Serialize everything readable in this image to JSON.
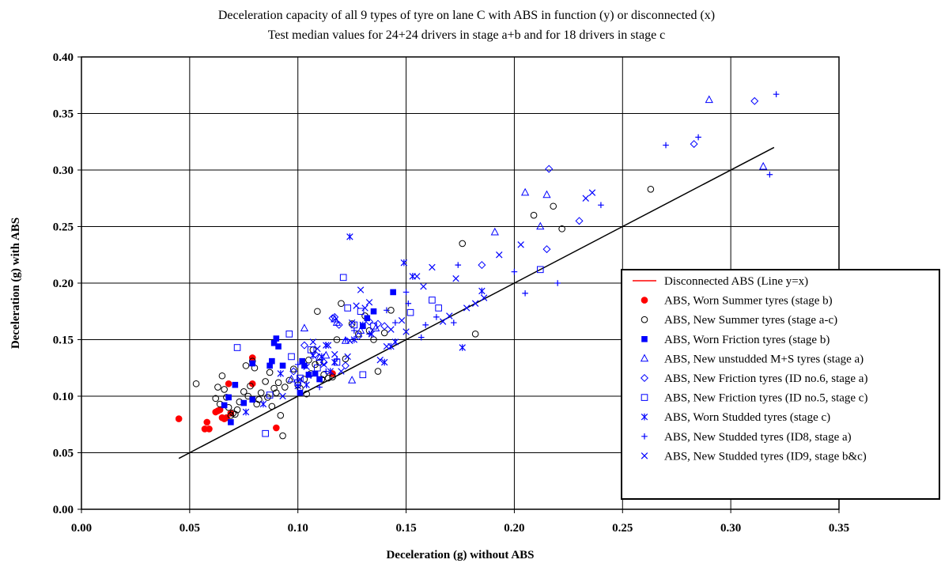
{
  "chart_data": {
    "type": "scatter",
    "title": "Deceleration capacity of all 9 types of tyre on lane C with ABS in function (y) or disconnected (x)",
    "subtitle": "Test median values for 24+24 drivers in stage a+b and for 18 drivers in stage c",
    "xlabel": "Deceleration (g) without ABS",
    "ylabel": "Deceleration (g) with ABS",
    "xlim": [
      0.0,
      0.35
    ],
    "ylim": [
      0.0,
      0.4
    ],
    "x_ticks": [
      "0.00",
      "0.05",
      "0.10",
      "0.15",
      "0.20",
      "0.25",
      "0.30",
      "0.35"
    ],
    "y_ticks": [
      "0.00",
      "0.05",
      "0.10",
      "0.15",
      "0.20",
      "0.25",
      "0.30",
      "0.35",
      "0.40"
    ],
    "grid": true,
    "legend_position": "right",
    "reference_line": {
      "name": "Disconnected ABS (Line y=x)",
      "x": [
        0.045,
        0.32
      ],
      "y": [
        0.045,
        0.32
      ],
      "color": "#000000",
      "legend_color": "#ff0000"
    },
    "series": [
      {
        "name": "ABS, Worn Summer tyres (stage b)",
        "marker": "circle-filled",
        "color": "#ff0000",
        "points": [
          [
            0.045,
            0.08
          ],
          [
            0.057,
            0.071
          ],
          [
            0.058,
            0.077
          ],
          [
            0.059,
            0.071
          ],
          [
            0.062,
            0.086
          ],
          [
            0.063,
            0.087
          ],
          [
            0.064,
            0.088
          ],
          [
            0.065,
            0.081
          ],
          [
            0.066,
            0.08
          ],
          [
            0.067,
            0.081
          ],
          [
            0.068,
            0.111
          ],
          [
            0.069,
            0.085
          ],
          [
            0.079,
            0.134
          ],
          [
            0.079,
            0.111
          ],
          [
            0.09,
            0.072
          ],
          [
            0.116,
            0.12
          ]
        ]
      },
      {
        "name": "ABS, New Summer tyres (stage a-c)",
        "marker": "circle-open",
        "color": "#000000",
        "points": [
          [
            0.053,
            0.111
          ],
          [
            0.062,
            0.098
          ],
          [
            0.063,
            0.108
          ],
          [
            0.064,
            0.093
          ],
          [
            0.065,
            0.118
          ],
          [
            0.066,
            0.106
          ],
          [
            0.067,
            0.099
          ],
          [
            0.068,
            0.09
          ],
          [
            0.069,
            0.083
          ],
          [
            0.07,
            0.085
          ],
          [
            0.071,
            0.084
          ],
          [
            0.072,
            0.088
          ],
          [
            0.073,
            0.095
          ],
          [
            0.075,
            0.104
          ],
          [
            0.076,
            0.127
          ],
          [
            0.077,
            0.1
          ],
          [
            0.078,
            0.109
          ],
          [
            0.079,
            0.131
          ],
          [
            0.08,
            0.125
          ],
          [
            0.081,
            0.093
          ],
          [
            0.082,
            0.097
          ],
          [
            0.083,
            0.103
          ],
          [
            0.085,
            0.113
          ],
          [
            0.086,
            0.099
          ],
          [
            0.087,
            0.121
          ],
          [
            0.088,
            0.091
          ],
          [
            0.089,
            0.107
          ],
          [
            0.09,
            0.103
          ],
          [
            0.091,
            0.112
          ],
          [
            0.092,
            0.083
          ],
          [
            0.093,
            0.065
          ],
          [
            0.094,
            0.108
          ],
          [
            0.096,
            0.114
          ],
          [
            0.098,
            0.124
          ],
          [
            0.1,
            0.11
          ],
          [
            0.101,
            0.107
          ],
          [
            0.103,
            0.115
          ],
          [
            0.104,
            0.102
          ],
          [
            0.105,
            0.132
          ],
          [
            0.106,
            0.12
          ],
          [
            0.107,
            0.141
          ],
          [
            0.108,
            0.128
          ],
          [
            0.109,
            0.175
          ],
          [
            0.11,
            0.13
          ],
          [
            0.111,
            0.115
          ],
          [
            0.112,
            0.119
          ],
          [
            0.114,
            0.116
          ],
          [
            0.116,
            0.117
          ],
          [
            0.118,
            0.15
          ],
          [
            0.12,
            0.182
          ],
          [
            0.122,
            0.133
          ],
          [
            0.125,
            0.164
          ],
          [
            0.128,
            0.155
          ],
          [
            0.131,
            0.171
          ],
          [
            0.133,
            0.158
          ],
          [
            0.135,
            0.15
          ],
          [
            0.137,
            0.122
          ],
          [
            0.14,
            0.156
          ],
          [
            0.143,
            0.176
          ],
          [
            0.176,
            0.235
          ],
          [
            0.182,
            0.155
          ],
          [
            0.209,
            0.26
          ],
          [
            0.218,
            0.268
          ],
          [
            0.222,
            0.248
          ],
          [
            0.263,
            0.283
          ]
        ]
      },
      {
        "name": "ABS, Worn Friction tyres (stage b)",
        "marker": "square-filled",
        "color": "#0000ff",
        "points": [
          [
            0.066,
            0.092
          ],
          [
            0.068,
            0.099
          ],
          [
            0.069,
            0.077
          ],
          [
            0.071,
            0.11
          ],
          [
            0.075,
            0.094
          ],
          [
            0.079,
            0.129
          ],
          [
            0.079,
            0.097
          ],
          [
            0.087,
            0.127
          ],
          [
            0.088,
            0.131
          ],
          [
            0.089,
            0.147
          ],
          [
            0.09,
            0.151
          ],
          [
            0.091,
            0.144
          ],
          [
            0.093,
            0.127
          ],
          [
            0.101,
            0.103
          ],
          [
            0.102,
            0.131
          ],
          [
            0.103,
            0.127
          ],
          [
            0.105,
            0.119
          ],
          [
            0.108,
            0.12
          ],
          [
            0.11,
            0.115
          ],
          [
            0.13,
            0.162
          ],
          [
            0.132,
            0.169
          ],
          [
            0.135,
            0.175
          ],
          [
            0.144,
            0.192
          ]
        ]
      },
      {
        "name": "ABS, New unstudded M+S tyres (stage a)",
        "marker": "triangle-open",
        "color": "#0000ff",
        "points": [
          [
            0.097,
            0.115
          ],
          [
            0.103,
            0.16
          ],
          [
            0.11,
            0.134
          ],
          [
            0.113,
            0.136
          ],
          [
            0.117,
            0.168
          ],
          [
            0.118,
            0.165
          ],
          [
            0.122,
            0.149
          ],
          [
            0.125,
            0.114
          ],
          [
            0.129,
            0.158
          ],
          [
            0.136,
            0.16
          ],
          [
            0.191,
            0.245
          ],
          [
            0.205,
            0.28
          ],
          [
            0.212,
            0.25
          ],
          [
            0.215,
            0.278
          ],
          [
            0.29,
            0.362
          ],
          [
            0.315,
            0.303
          ]
        ]
      },
      {
        "name": "ABS, New Friction tyres (ID no.6, stage a)",
        "marker": "diamond-open",
        "color": "#0000ff",
        "points": [
          [
            0.098,
            0.122
          ],
          [
            0.103,
            0.145
          ],
          [
            0.108,
            0.137
          ],
          [
            0.112,
            0.13
          ],
          [
            0.116,
            0.169
          ],
          [
            0.117,
            0.17
          ],
          [
            0.119,
            0.163
          ],
          [
            0.122,
            0.127
          ],
          [
            0.128,
            0.153
          ],
          [
            0.133,
            0.166
          ],
          [
            0.137,
            0.164
          ],
          [
            0.14,
            0.162
          ],
          [
            0.185,
            0.216
          ],
          [
            0.215,
            0.23
          ],
          [
            0.216,
            0.301
          ],
          [
            0.23,
            0.255
          ],
          [
            0.283,
            0.323
          ],
          [
            0.311,
            0.361
          ]
        ]
      },
      {
        "name": "ABS, New Friction tyres (ID no.5, stage c)",
        "marker": "square-open",
        "color": "#0000ff",
        "points": [
          [
            0.072,
            0.143
          ],
          [
            0.085,
            0.067
          ],
          [
            0.087,
            0.101
          ],
          [
            0.096,
            0.155
          ],
          [
            0.097,
            0.135
          ],
          [
            0.1,
            0.112
          ],
          [
            0.101,
            0.116
          ],
          [
            0.106,
            0.141
          ],
          [
            0.109,
            0.125
          ],
          [
            0.118,
            0.13
          ],
          [
            0.121,
            0.205
          ],
          [
            0.123,
            0.178
          ],
          [
            0.126,
            0.163
          ],
          [
            0.129,
            0.175
          ],
          [
            0.13,
            0.119
          ],
          [
            0.135,
            0.162
          ],
          [
            0.152,
            0.174
          ],
          [
            0.162,
            0.185
          ],
          [
            0.165,
            0.178
          ],
          [
            0.212,
            0.212
          ]
        ]
      },
      {
        "name": "ABS, Worn Studded tyres (stage c)",
        "marker": "asterisk",
        "color": "#0000ff",
        "points": [
          [
            0.076,
            0.086
          ],
          [
            0.084,
            0.093
          ],
          [
            0.092,
            0.12
          ],
          [
            0.1,
            0.109
          ],
          [
            0.104,
            0.11
          ],
          [
            0.107,
            0.136
          ],
          [
            0.111,
            0.135
          ],
          [
            0.113,
            0.145
          ],
          [
            0.115,
            0.122
          ],
          [
            0.117,
            0.13
          ],
          [
            0.124,
            0.241
          ],
          [
            0.126,
            0.15
          ],
          [
            0.13,
            0.163
          ],
          [
            0.134,
            0.155
          ],
          [
            0.14,
            0.13
          ],
          [
            0.143,
            0.144
          ],
          [
            0.145,
            0.148
          ],
          [
            0.149,
            0.218
          ],
          [
            0.153,
            0.206
          ],
          [
            0.176,
            0.143
          ],
          [
            0.185,
            0.193
          ]
        ]
      },
      {
        "name": "ABS, New Studded tyres (ID8, stage a)",
        "marker": "plus",
        "color": "#0000ff",
        "points": [
          [
            0.1,
            0.128
          ],
          [
            0.106,
            0.118
          ],
          [
            0.11,
            0.108
          ],
          [
            0.113,
            0.122
          ],
          [
            0.118,
            0.133
          ],
          [
            0.122,
            0.15
          ],
          [
            0.126,
            0.158
          ],
          [
            0.133,
            0.155
          ],
          [
            0.141,
            0.176
          ],
          [
            0.145,
            0.165
          ],
          [
            0.15,
            0.192
          ],
          [
            0.151,
            0.182
          ],
          [
            0.157,
            0.152
          ],
          [
            0.159,
            0.163
          ],
          [
            0.164,
            0.17
          ],
          [
            0.172,
            0.165
          ],
          [
            0.174,
            0.216
          ],
          [
            0.2,
            0.21
          ],
          [
            0.205,
            0.191
          ],
          [
            0.22,
            0.2
          ],
          [
            0.24,
            0.269
          ],
          [
            0.27,
            0.322
          ],
          [
            0.285,
            0.329
          ],
          [
            0.318,
            0.296
          ],
          [
            0.321,
            0.367
          ]
        ]
      },
      {
        "name": "ABS, New Studded tyres (ID9, stage b&c)",
        "marker": "x",
        "color": "#0000ff",
        "points": [
          [
            0.093,
            0.1
          ],
          [
            0.101,
            0.115
          ],
          [
            0.104,
            0.126
          ],
          [
            0.107,
            0.148
          ],
          [
            0.109,
            0.142
          ],
          [
            0.112,
            0.128
          ],
          [
            0.114,
            0.145
          ],
          [
            0.117,
            0.137
          ],
          [
            0.12,
            0.122
          ],
          [
            0.123,
            0.135
          ],
          [
            0.124,
            0.149
          ],
          [
            0.125,
            0.165
          ],
          [
            0.127,
            0.18
          ],
          [
            0.129,
            0.194
          ],
          [
            0.131,
            0.178
          ],
          [
            0.133,
            0.183
          ],
          [
            0.138,
            0.132
          ],
          [
            0.141,
            0.144
          ],
          [
            0.143,
            0.159
          ],
          [
            0.148,
            0.167
          ],
          [
            0.15,
            0.157
          ],
          [
            0.155,
            0.206
          ],
          [
            0.158,
            0.197
          ],
          [
            0.162,
            0.214
          ],
          [
            0.167,
            0.166
          ],
          [
            0.17,
            0.171
          ],
          [
            0.173,
            0.204
          ],
          [
            0.178,
            0.178
          ],
          [
            0.182,
            0.182
          ],
          [
            0.186,
            0.187
          ],
          [
            0.193,
            0.225
          ],
          [
            0.203,
            0.234
          ],
          [
            0.233,
            0.275
          ],
          [
            0.236,
            0.28
          ]
        ]
      }
    ]
  }
}
